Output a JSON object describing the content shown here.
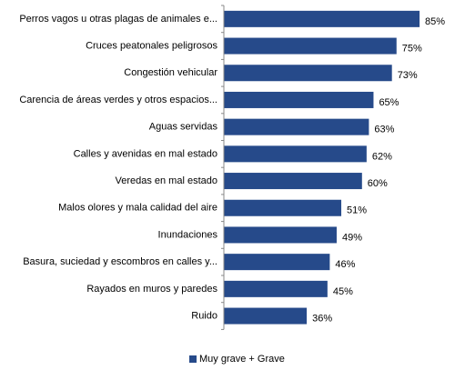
{
  "chart_data": {
    "type": "bar",
    "orientation": "horizontal",
    "categories": [
      "Perros vagos u otras plagas de animales e...",
      "Cruces peatonales peligrosos",
      "Congestión vehicular",
      "Carencia de áreas verdes y otros espacios...",
      "Aguas servidas",
      "Calles y avenidas en mal estado",
      "Veredas en mal estado",
      "Malos olores y mala calidad del aire",
      "Inundaciones",
      "Basura, suciedad y escombros en calles y...",
      "Rayados en muros y paredes",
      "Ruido"
    ],
    "series": [
      {
        "name": "Muy grave + Grave",
        "color": "#264a8a",
        "values": [
          85,
          75,
          73,
          65,
          63,
          62,
          60,
          51,
          49,
          46,
          45,
          36
        ],
        "value_labels": [
          "85%",
          "75%",
          "73%",
          "65%",
          "63%",
          "62%",
          "60%",
          "51%",
          "49%",
          "46%",
          "45%",
          "36%"
        ]
      }
    ],
    "xlim": [
      0,
      100
    ],
    "legend": "bottom"
  }
}
